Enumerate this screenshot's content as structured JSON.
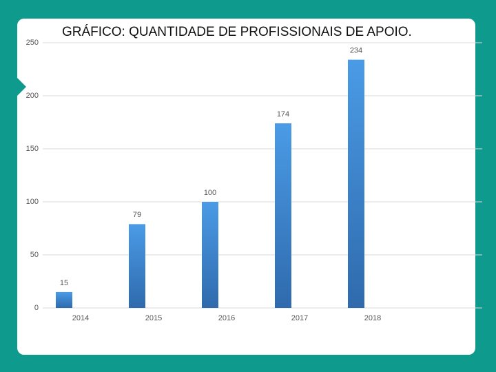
{
  "chart_data": {
    "type": "bar",
    "title": "GRÁFICO: QUANTIDADE DE PROFISSIONAIS DE APOIO.",
    "categories": [
      "2014",
      "2015",
      "2016",
      "2017",
      "2018"
    ],
    "values": [
      15,
      79,
      100,
      174,
      234
    ],
    "color": "#4a9be6",
    "ylim": [
      0,
      250
    ],
    "yticks": [
      0,
      50,
      100,
      150,
      200,
      250
    ],
    "grid": true
  }
}
